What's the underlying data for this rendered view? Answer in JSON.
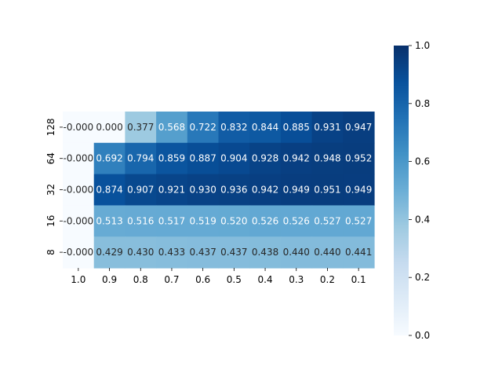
{
  "chart_data": {
    "type": "heatmap",
    "colormap": "Blues",
    "x_categories": [
      "1.0",
      "0.9",
      "0.8",
      "0.7",
      "0.6",
      "0.5",
      "0.4",
      "0.3",
      "0.2",
      "0.1"
    ],
    "y_categories": [
      "128",
      "64",
      "32",
      "16",
      "8"
    ],
    "values": [
      [
        -0.0,
        0.0,
        0.377,
        0.568,
        0.722,
        0.832,
        0.844,
        0.885,
        0.931,
        0.947
      ],
      [
        -0.0,
        0.692,
        0.794,
        0.859,
        0.887,
        0.904,
        0.928,
        0.942,
        0.948,
        0.952
      ],
      [
        -0.0,
        0.874,
        0.907,
        0.921,
        0.93,
        0.936,
        0.942,
        0.949,
        0.951,
        0.949
      ],
      [
        -0.0,
        0.513,
        0.516,
        0.517,
        0.519,
        0.52,
        0.526,
        0.526,
        0.527,
        0.527
      ],
      [
        -0.0,
        0.429,
        0.43,
        0.433,
        0.437,
        0.437,
        0.438,
        0.44,
        0.44,
        0.441
      ]
    ],
    "annotations": [
      [
        "-0.000",
        "0.000",
        "0.377",
        "0.568",
        "0.722",
        "0.832",
        "0.844",
        "0.885",
        "0.931",
        "0.947"
      ],
      [
        "-0.000",
        "0.692",
        "0.794",
        "0.859",
        "0.887",
        "0.904",
        "0.928",
        "0.942",
        "0.948",
        "0.952"
      ],
      [
        "-0.000",
        "0.874",
        "0.907",
        "0.921",
        "0.930",
        "0.936",
        "0.942",
        "0.949",
        "0.951",
        "0.949"
      ],
      [
        "-0.000",
        "0.513",
        "0.516",
        "0.517",
        "0.519",
        "0.520",
        "0.526",
        "0.526",
        "0.527",
        "0.527"
      ],
      [
        "-0.000",
        "0.429",
        "0.430",
        "0.433",
        "0.437",
        "0.437",
        "0.438",
        "0.440",
        "0.440",
        "0.441"
      ]
    ],
    "vmin": 0.0,
    "vmax": 1.0,
    "colorbar_ticks": [
      "0.0",
      "0.2",
      "0.4",
      "0.6",
      "0.8",
      "1.0"
    ],
    "title": "",
    "xlabel": "",
    "ylabel": ""
  }
}
